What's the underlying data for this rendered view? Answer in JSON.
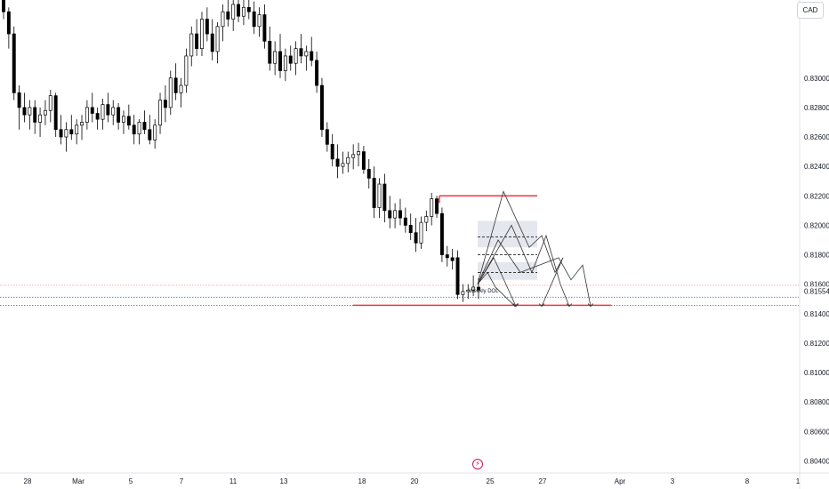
{
  "chart_data": {
    "type": "candlestick",
    "currency": "CAD",
    "ylim": [
      0.8033,
      0.8353
    ],
    "y_ticks": [
      "0.83000",
      "0.82800",
      "0.82600",
      "0.82400",
      "0.82200",
      "0.82000",
      "0.81800",
      "0.81600",
      "0.81400",
      "0.81200",
      "0.81000",
      "0.80800",
      "0.80600",
      "0.80400"
    ],
    "x_ticks": [
      "28",
      "Mar",
      "5",
      "7",
      "11",
      "13",
      "18",
      "20",
      "25",
      "27",
      "Apr",
      "3",
      "8",
      "1"
    ],
    "price_badge": "0.81554",
    "annotation": "Weekly DOL",
    "candles": [
      [
        0.8355,
        0.8355,
        0.834,
        0.8345
      ],
      [
        0.8345,
        0.8348,
        0.832,
        0.833
      ],
      [
        0.833,
        0.8335,
        0.8285,
        0.829
      ],
      [
        0.829,
        0.8295,
        0.8265,
        0.828
      ],
      [
        0.828,
        0.829,
        0.827,
        0.8275
      ],
      [
        0.8275,
        0.8285,
        0.8265,
        0.828
      ],
      [
        0.828,
        0.8285,
        0.8262,
        0.827
      ],
      [
        0.827,
        0.828,
        0.826,
        0.8275
      ],
      [
        0.8275,
        0.8285,
        0.8268,
        0.8278
      ],
      [
        0.8278,
        0.8292,
        0.827,
        0.8288
      ],
      [
        0.8288,
        0.829,
        0.826,
        0.8265
      ],
      [
        0.8265,
        0.8275,
        0.8255,
        0.826
      ],
      [
        0.826,
        0.827,
        0.825,
        0.8265
      ],
      [
        0.8265,
        0.8275,
        0.8258,
        0.8262
      ],
      [
        0.8262,
        0.8272,
        0.8255,
        0.8268
      ],
      [
        0.8268,
        0.8275,
        0.8258,
        0.827
      ],
      [
        0.827,
        0.8285,
        0.8265,
        0.828
      ],
      [
        0.828,
        0.829,
        0.827,
        0.8276
      ],
      [
        0.8276,
        0.828,
        0.8265,
        0.8272
      ],
      [
        0.8272,
        0.8286,
        0.8265,
        0.8282
      ],
      [
        0.8282,
        0.829,
        0.827,
        0.8275
      ],
      [
        0.8275,
        0.8285,
        0.8268,
        0.828
      ],
      [
        0.828,
        0.8283,
        0.8265,
        0.827
      ],
      [
        0.827,
        0.8278,
        0.8262,
        0.8274
      ],
      [
        0.8274,
        0.8282,
        0.8265,
        0.8268
      ],
      [
        0.8268,
        0.8275,
        0.8255,
        0.8262
      ],
      [
        0.8262,
        0.8272,
        0.8255,
        0.827
      ],
      [
        0.827,
        0.8278,
        0.8262,
        0.8265
      ],
      [
        0.8265,
        0.8275,
        0.8255,
        0.8258
      ],
      [
        0.8258,
        0.8272,
        0.8252,
        0.8268
      ],
      [
        0.8268,
        0.829,
        0.8262,
        0.8285
      ],
      [
        0.8285,
        0.8295,
        0.827,
        0.828
      ],
      [
        0.828,
        0.8305,
        0.8275,
        0.83
      ],
      [
        0.83,
        0.831,
        0.8285,
        0.829
      ],
      [
        0.829,
        0.83,
        0.828,
        0.8295
      ],
      [
        0.8295,
        0.832,
        0.829,
        0.8315
      ],
      [
        0.8315,
        0.8335,
        0.8308,
        0.833
      ],
      [
        0.833,
        0.834,
        0.8315,
        0.832
      ],
      [
        0.832,
        0.8345,
        0.8315,
        0.834
      ],
      [
        0.834,
        0.8348,
        0.8325,
        0.833
      ],
      [
        0.833,
        0.834,
        0.8312,
        0.8318
      ],
      [
        0.8318,
        0.8338,
        0.831,
        0.8335
      ],
      [
        0.8335,
        0.835,
        0.8325,
        0.8345
      ],
      [
        0.8345,
        0.8355,
        0.8335,
        0.834
      ],
      [
        0.834,
        0.8355,
        0.8332,
        0.835
      ],
      [
        0.835,
        0.8355,
        0.8338,
        0.8342
      ],
      [
        0.8342,
        0.8355,
        0.8336,
        0.8348
      ],
      [
        0.8348,
        0.8355,
        0.834,
        0.8345
      ],
      [
        0.8345,
        0.8352,
        0.833,
        0.8335
      ],
      [
        0.8335,
        0.8348,
        0.8328,
        0.8343
      ],
      [
        0.8343,
        0.835,
        0.832,
        0.8325
      ],
      [
        0.8325,
        0.8335,
        0.8305,
        0.831
      ],
      [
        0.831,
        0.8325,
        0.8302,
        0.8318
      ],
      [
        0.8318,
        0.833,
        0.83,
        0.8305
      ],
      [
        0.8305,
        0.832,
        0.8298,
        0.8315
      ],
      [
        0.8315,
        0.8322,
        0.8305,
        0.831
      ],
      [
        0.831,
        0.8325,
        0.8302,
        0.832
      ],
      [
        0.832,
        0.833,
        0.831,
        0.8315
      ],
      [
        0.8315,
        0.8322,
        0.8305,
        0.8318
      ],
      [
        0.8318,
        0.8328,
        0.8308,
        0.8312
      ],
      [
        0.8312,
        0.8318,
        0.829,
        0.8295
      ],
      [
        0.8295,
        0.83,
        0.826,
        0.8265
      ],
      [
        0.8265,
        0.827,
        0.825,
        0.8255
      ],
      [
        0.8255,
        0.8262,
        0.824,
        0.8245
      ],
      [
        0.8245,
        0.8255,
        0.8232,
        0.824
      ],
      [
        0.824,
        0.825,
        0.8235,
        0.8242
      ],
      [
        0.8242,
        0.825,
        0.8236,
        0.8246
      ],
      [
        0.8246,
        0.8255,
        0.8238,
        0.8248
      ],
      [
        0.8248,
        0.8256,
        0.824,
        0.825
      ],
      [
        0.825,
        0.8254,
        0.8235,
        0.8238
      ],
      [
        0.8238,
        0.8245,
        0.8225,
        0.8232
      ],
      [
        0.8232,
        0.824,
        0.8205,
        0.8212
      ],
      [
        0.8212,
        0.8232,
        0.8205,
        0.8228
      ],
      [
        0.8228,
        0.8235,
        0.8202,
        0.821
      ],
      [
        0.821,
        0.822,
        0.8198,
        0.8205
      ],
      [
        0.8205,
        0.8215,
        0.8198,
        0.821
      ],
      [
        0.821,
        0.8218,
        0.82,
        0.8205
      ],
      [
        0.8205,
        0.8212,
        0.8195,
        0.82
      ],
      [
        0.82,
        0.8208,
        0.819,
        0.8195
      ],
      [
        0.8195,
        0.8205,
        0.8182,
        0.8188
      ],
      [
        0.8188,
        0.8206,
        0.8184,
        0.8202
      ],
      [
        0.8202,
        0.821,
        0.8196,
        0.8206
      ],
      [
        0.8206,
        0.8222,
        0.82,
        0.8218
      ],
      [
        0.8218,
        0.822,
        0.8205,
        0.8208
      ],
      [
        0.8208,
        0.8212,
        0.8175,
        0.818
      ],
      [
        0.818,
        0.8186,
        0.8172,
        0.8178
      ],
      [
        0.8178,
        0.8184,
        0.817,
        0.8176
      ],
      [
        0.8178,
        0.8183,
        0.815,
        0.8153
      ],
      [
        0.8153,
        0.816,
        0.8148,
        0.8155
      ],
      [
        0.8155,
        0.816,
        0.815,
        0.8156
      ],
      [
        0.8156,
        0.8166,
        0.8152,
        0.8158
      ],
      [
        0.8158,
        0.8164,
        0.815,
        0.8156
      ]
    ],
    "horizontal_lines": [
      {
        "price": 0.822,
        "color": "#f23645"
      },
      {
        "price": 0.81457,
        "color": "#f23645"
      }
    ],
    "price_lines": [
      {
        "price": 0.81593,
        "color": "#f7a6ad"
      },
      {
        "price": 0.81512,
        "color": "#2962ff"
      },
      {
        "price": 0.81457,
        "color": "#2962ff"
      }
    ],
    "zones": [
      {
        "from": 0.8195,
        "to": 0.8203
      },
      {
        "from": 0.8185,
        "to": 0.8195
      },
      {
        "from": 0.8163,
        "to": 0.8175
      }
    ],
    "dashed_levels": [
      0.8192,
      0.818,
      0.8168
    ],
    "colors": {
      "candle": "#000000",
      "candle_up_fill": "#ffffff",
      "level_red": "#f23645",
      "zone": "#e0e3eb",
      "axis_text": "#131722",
      "accent_bolt": "#c2185b"
    }
  }
}
